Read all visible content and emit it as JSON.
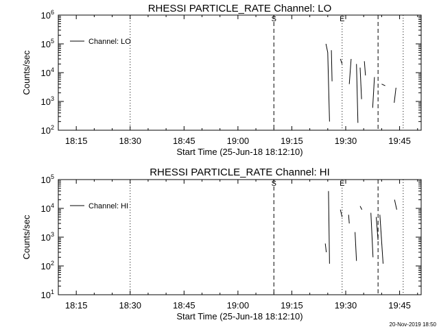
{
  "footer": {
    "timestamp": "20-Nov-2019 18:50"
  },
  "colors": {
    "background": "#ffffff",
    "foreground": "#000000"
  },
  "chart_data": [
    {
      "type": "line",
      "title": "RHESSI PARTICLE_RATE Channel: LO",
      "xlabel": "Start Time (25-Jun-18 18:12:10)",
      "ylabel": "Counts/sec",
      "yscale": "log",
      "xlim": [
        "18:10",
        "19:51"
      ],
      "ylim": [
        100,
        1000000
      ],
      "x_tick_labels": [
        "18:15",
        "18:30",
        "18:45",
        "19:00",
        "19:15",
        "19:30",
        "19:45"
      ],
      "y_tick_exponents": [
        2,
        3,
        4,
        5,
        6
      ],
      "legend": {
        "position": "top-left",
        "entries": [
          "Channel: LO"
        ]
      },
      "vlines": [
        {
          "x": "18:30",
          "style": "dotted",
          "label": ""
        },
        {
          "x": "19:10",
          "style": "dashed",
          "label": "S"
        },
        {
          "x": "19:29",
          "style": "dotted",
          "label": "E"
        },
        {
          "x": "19:39",
          "style": "dashed",
          "label": ""
        },
        {
          "x": "19:46",
          "style": "dotted",
          "label": ""
        }
      ],
      "series": [
        {
          "name": "Channel: LO",
          "segments": [
            [
              [
                "19:24.5",
                100000
              ],
              [
                "19:25.0",
                50000
              ],
              [
                "19:25.5",
                200
              ]
            ],
            [
              [
                "19:26.0",
                60000
              ],
              [
                "19:26.2",
                5000
              ]
            ],
            [
              [
                "19:28.5",
                30000
              ],
              [
                "19:29.0",
                20000
              ]
            ],
            [
              [
                "19:31.0",
                4000
              ],
              [
                "19:31.5",
                30000
              ]
            ],
            [
              [
                "19:33.0",
                20000
              ],
              [
                "19:33.4",
                180
              ]
            ],
            [
              [
                "19:34.0",
                15000
              ],
              [
                "19:34.4",
                1200
              ]
            ],
            [
              [
                "19:35.2",
                25000
              ],
              [
                "19:35.5",
                8000
              ]
            ],
            [
              [
                "19:37.5",
                600
              ],
              [
                "19:38.0",
                7000
              ]
            ],
            [
              [
                "19:40.0",
                4000
              ],
              [
                "19:41.0",
                3500
              ]
            ],
            [
              [
                "19:43.5",
                900
              ],
              [
                "19:44.0",
                3000
              ]
            ]
          ]
        }
      ]
    },
    {
      "type": "line",
      "title": "RHESSI PARTICLE_RATE Channel: HI",
      "xlabel": "Start Time (25-Jun-18 18:12:10)",
      "ylabel": "Counts/sec",
      "yscale": "log",
      "xlim": [
        "18:10",
        "19:51"
      ],
      "ylim": [
        10,
        100000
      ],
      "x_tick_labels": [
        "18:15",
        "18:30",
        "18:45",
        "19:00",
        "19:15",
        "19:30",
        "19:45"
      ],
      "y_tick_exponents": [
        1,
        2,
        3,
        4,
        5
      ],
      "legend": {
        "position": "top-left",
        "entries": [
          "Channel: HI"
        ]
      },
      "vlines": [
        {
          "x": "18:30",
          "style": "dotted",
          "label": ""
        },
        {
          "x": "19:10",
          "style": "dashed",
          "label": "S"
        },
        {
          "x": "19:29",
          "style": "dotted",
          "label": "E"
        },
        {
          "x": "19:39",
          "style": "dashed",
          "label": ""
        },
        {
          "x": "19:46",
          "style": "dotted",
          "label": ""
        }
      ],
      "series": [
        {
          "name": "Channel: HI",
          "segments": [
            [
              [
                "19:24.3",
                600
              ],
              [
                "19:24.6",
                300
              ]
            ],
            [
              [
                "19:25.2",
                40000
              ],
              [
                "19:25.5",
                120
              ]
            ],
            [
              [
                "19:28.5",
                9000
              ],
              [
                "19:29.0",
                5000
              ]
            ],
            [
              [
                "19:30.8",
                6000
              ],
              [
                "19:31.0",
                3000
              ]
            ],
            [
              [
                "19:32.6",
                1500
              ],
              [
                "19:33.0",
                150
              ]
            ],
            [
              [
                "19:34.0",
                12000
              ],
              [
                "19:34.5",
                9000
              ]
            ],
            [
              [
                "19:37.0",
                7000
              ],
              [
                "19:37.6",
                200
              ]
            ],
            [
              [
                "19:38.5",
                5000
              ],
              [
                "19:39.0",
                800
              ]
            ],
            [
              [
                "19:39.5",
                6000
              ],
              [
                "19:40.4",
                120
              ]
            ],
            [
              [
                "19:43.6",
                20000
              ],
              [
                "19:44.2",
                9000
              ]
            ]
          ]
        }
      ]
    }
  ]
}
